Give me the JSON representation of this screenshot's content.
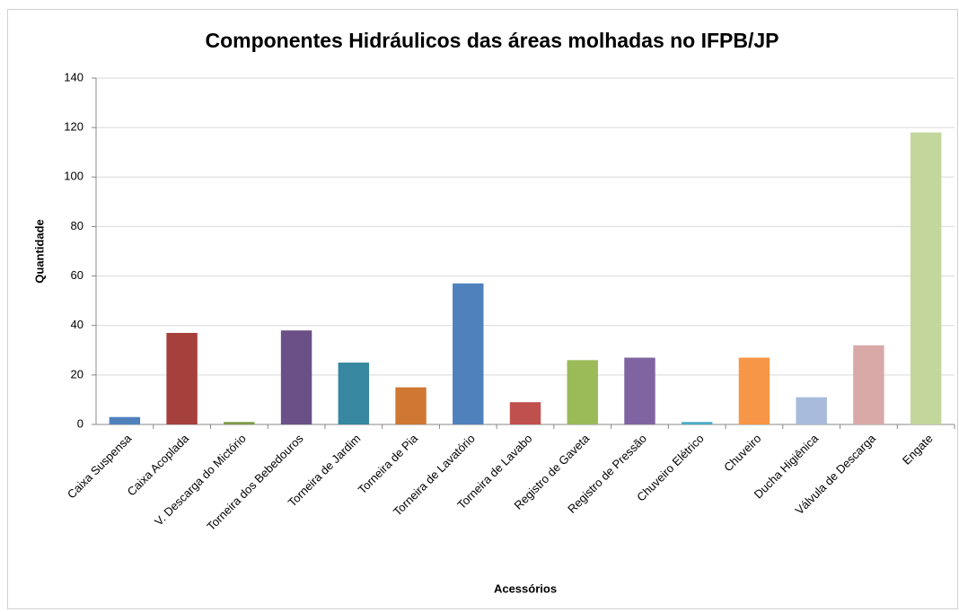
{
  "chart_data": {
    "type": "bar",
    "title": "Componentes Hidráulicos das áreas molhadas no IFPB/JP",
    "x_label": "Acessórios",
    "y_label": "Quantidade",
    "categories": [
      "Caixa Suspensa",
      "Caixa Acoplada",
      "V. Descarga do Mictório",
      "Torneira dos Bebedouros",
      "Torneira de Jardim",
      "Torneira de Pia",
      "Torneira de Lavatório",
      "Torneira de Lavabo",
      "Registro de Gaveta",
      "Registro de Pressão",
      "Chuveiro Elétrico",
      "Chuveiro",
      "Ducha Higiênica",
      "Válvula de Descarga",
      "Engate"
    ],
    "values": [
      3,
      37,
      1,
      38,
      25,
      15,
      57,
      9,
      26,
      27,
      1,
      27,
      11,
      32,
      118
    ],
    "colors": [
      "#4f81bd",
      "#a5403c",
      "#7f9a48",
      "#6a5087",
      "#36879f",
      "#cf7834",
      "#4f81bd",
      "#c0504d",
      "#9bbb59",
      "#8064a2",
      "#4bacc6",
      "#f79646",
      "#a8bbdc",
      "#d9a9a8",
      "#c3d69b"
    ],
    "ylim": [
      0,
      140
    ],
    "yticks": [
      0,
      20,
      40,
      60,
      80,
      100,
      120,
      140
    ],
    "grid": true
  }
}
